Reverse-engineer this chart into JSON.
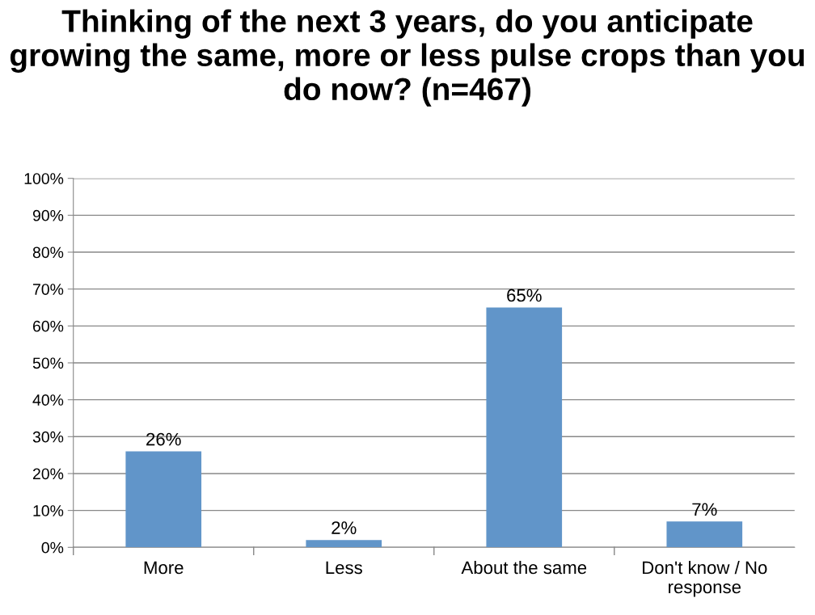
{
  "chart_data": {
    "type": "bar",
    "title": "Thinking of the next 3 years, do you anticipate growing the same, more or less pulse crops than you do now? (n=467)",
    "categories": [
      "More",
      "Less",
      "About the same",
      "Don't know / No response"
    ],
    "values": [
      26,
      2,
      65,
      7
    ],
    "value_labels": [
      "26%",
      "2%",
      "65%",
      "7%"
    ],
    "color": "#6195c9",
    "ylim": [
      0,
      100
    ],
    "yticks": [
      {
        "value": 0,
        "label": "0%"
      },
      {
        "value": 10,
        "label": "10%"
      },
      {
        "value": 20,
        "label": "20%"
      },
      {
        "value": 30,
        "label": "30%"
      },
      {
        "value": 40,
        "label": "40%"
      },
      {
        "value": 50,
        "label": "50%"
      },
      {
        "value": 60,
        "label": "60%"
      },
      {
        "value": 70,
        "label": "70%"
      },
      {
        "value": 80,
        "label": "80%"
      },
      {
        "value": 90,
        "label": "90%"
      },
      {
        "value": 100,
        "label": "100%"
      }
    ],
    "grid": "y",
    "legend": false
  }
}
